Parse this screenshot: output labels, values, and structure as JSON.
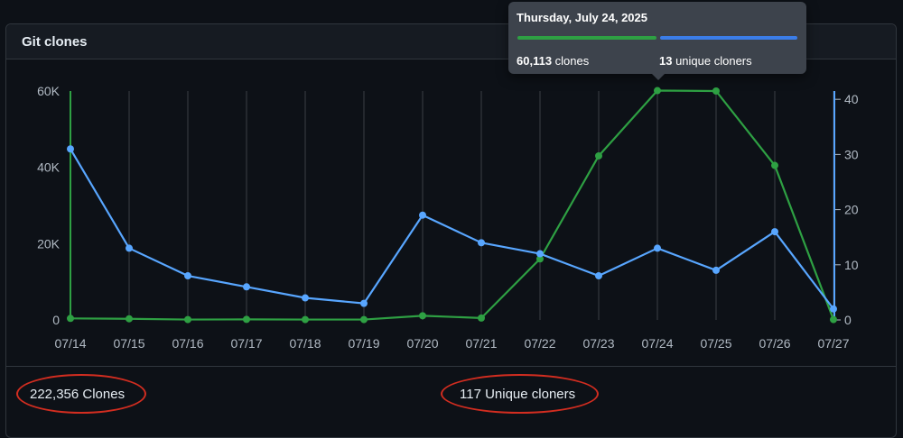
{
  "panel": {
    "title": "Git clones"
  },
  "footer": {
    "clones_text": "222,356 Clones",
    "unique_text": "117 Unique cloners"
  },
  "tooltip": {
    "date": "Thursday, July 24, 2025",
    "clones_value": "60,113",
    "clones_label": " clones",
    "unique_value": "13",
    "unique_label": " unique cloners",
    "clones_color": "#2ea043",
    "unique_color": "#3b7de8"
  },
  "chart_data": {
    "type": "line",
    "categories": [
      "07/14",
      "07/15",
      "07/16",
      "07/17",
      "07/18",
      "07/19",
      "07/20",
      "07/21",
      "07/22",
      "07/23",
      "07/24",
      "07/25",
      "07/26",
      "07/27"
    ],
    "series": [
      {
        "axis": "left",
        "color": "#2ea043",
        "values": [
          400,
          300,
          100,
          150,
          100,
          100,
          1100,
          500,
          16000,
          43000,
          60113,
          60000,
          40500,
          100
        ]
      },
      {
        "axis": "right",
        "color": "#58a6ff",
        "values": [
          31,
          13,
          8,
          6,
          4,
          3,
          19,
          14,
          12,
          8,
          13,
          9,
          16,
          2
        ]
      }
    ],
    "y_left": {
      "min": 0,
      "max": 60000,
      "ticks": [
        0,
        20000,
        40000,
        60000
      ],
      "tick_labels": [
        "0",
        "20K",
        "40K",
        "60K"
      ]
    },
    "y_right": {
      "min": 0,
      "max": 41.5,
      "ticks": [
        0,
        10,
        20,
        30,
        40
      ],
      "tick_labels": [
        "0",
        "10",
        "20",
        "30",
        "40"
      ]
    },
    "highlight_index": 10,
    "grid": true
  }
}
